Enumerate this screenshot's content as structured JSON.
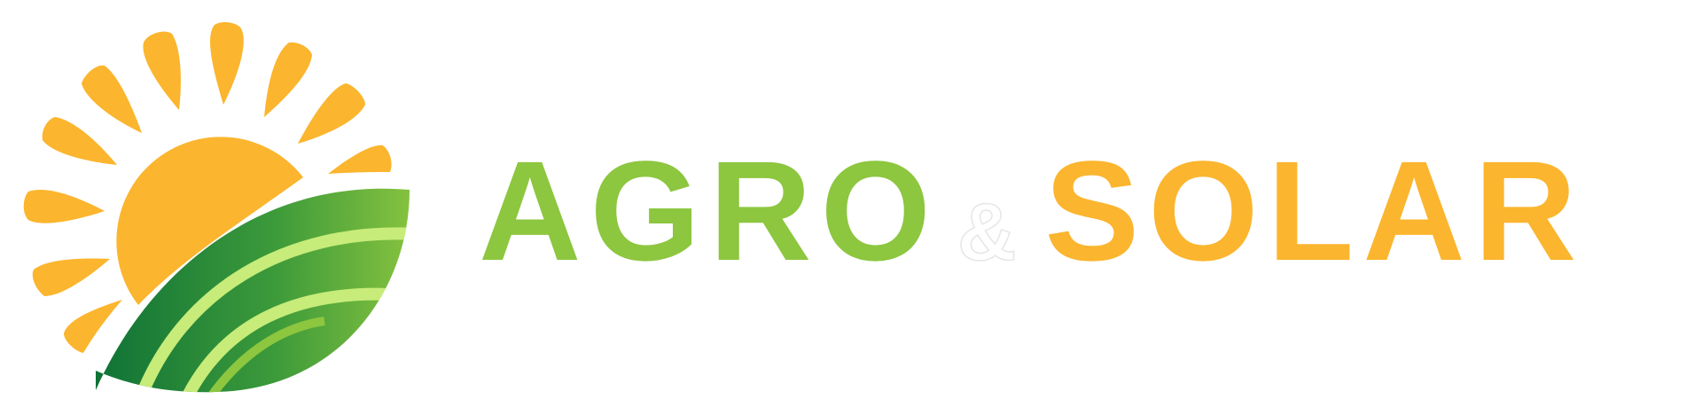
{
  "logo": {
    "word_left": "AGRO",
    "ampersand": "&",
    "word_right": "SOLAR"
  },
  "colors": {
    "sun": "#fbb52e",
    "agro_green": "#8dc63f",
    "field_dark": "#0e7136",
    "field_light": "#8dc63f",
    "field_stripe": "#c7ec7a",
    "solar_orange": "#fbb52e"
  },
  "icons": {
    "emblem": "sun-over-field-icon"
  }
}
